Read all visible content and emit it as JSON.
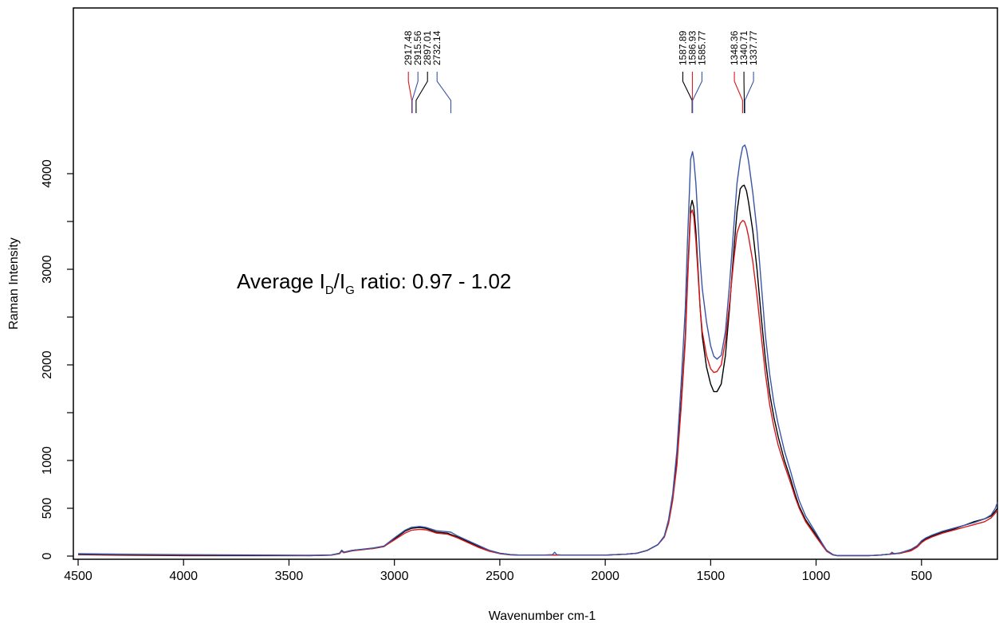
{
  "chart_data": {
    "type": "line",
    "title": "",
    "xlabel": "Wavenumber cm-1",
    "ylabel": "Raman Intensity",
    "xlim": [
      4500,
      140
    ],
    "ylim": [
      -50,
      5800
    ],
    "xticks": [
      4500,
      4000,
      3500,
      3000,
      2500,
      2000,
      1500,
      1000,
      500
    ],
    "xtick_labels": [
      "4500",
      "4000",
      "3500",
      "3000",
      "2500",
      "2000",
      "1500",
      "1000",
      "500"
    ],
    "yticks": [
      0,
      500,
      1000,
      2000,
      3000,
      4000
    ],
    "ytick_labels": [
      "0",
      "500",
      "1000",
      "2000",
      "3000",
      "4000"
    ],
    "y_minor_ticks": [
      1500,
      2500,
      3500
    ],
    "grid": false,
    "legend": "none",
    "annotation": {
      "prefix": "Average I",
      "sub1": "D",
      "mid": "/I",
      "sub2": "G",
      "suffix": " ratio: 0.97 - 1.02"
    },
    "series": [
      {
        "color": "#000000",
        "x": [
          4500,
          4300,
          4000,
          3700,
          3400,
          3300,
          3260,
          3250,
          3240,
          3200,
          3100,
          3050,
          3000,
          2950,
          2920,
          2880,
          2850,
          2800,
          2750,
          2700,
          2650,
          2600,
          2550,
          2500,
          2450,
          2400,
          2300,
          2200,
          2100,
          2000,
          1900,
          1850,
          1800,
          1750,
          1720,
          1700,
          1680,
          1660,
          1640,
          1620,
          1610,
          1600,
          1595,
          1588,
          1580,
          1570,
          1560,
          1550,
          1540,
          1520,
          1500,
          1485,
          1470,
          1450,
          1430,
          1410,
          1390,
          1375,
          1360,
          1350,
          1341,
          1330,
          1320,
          1300,
          1280,
          1260,
          1240,
          1220,
          1200,
          1180,
          1150,
          1120,
          1100,
          1080,
          1050,
          1000,
          970,
          950,
          920,
          900,
          880,
          860,
          840,
          800,
          750,
          700,
          650,
          600,
          550,
          520,
          500,
          480,
          450,
          400,
          350,
          300,
          250,
          200,
          170,
          150,
          140
        ],
        "y": [
          15,
          10,
          5,
          5,
          5,
          10,
          30,
          60,
          40,
          60,
          80,
          100,
          180,
          260,
          290,
          300,
          290,
          250,
          240,
          200,
          150,
          100,
          60,
          30,
          15,
          10,
          10,
          10,
          10,
          10,
          20,
          30,
          60,
          120,
          200,
          350,
          600,
          1000,
          1600,
          2300,
          2900,
          3400,
          3650,
          3720,
          3650,
          3400,
          3000,
          2600,
          2300,
          1980,
          1800,
          1720,
          1720,
          1800,
          2100,
          2600,
          3200,
          3600,
          3840,
          3870,
          3880,
          3820,
          3700,
          3400,
          3000,
          2500,
          2050,
          1700,
          1450,
          1250,
          1000,
          800,
          650,
          520,
          380,
          220,
          120,
          60,
          15,
          5,
          5,
          5,
          5,
          5,
          5,
          10,
          20,
          30,
          60,
          100,
          150,
          180,
          210,
          250,
          280,
          320,
          360,
          390,
          420,
          470,
          500
        ]
      },
      {
        "color": "#d7191c",
        "x": [
          4500,
          4300,
          4000,
          3700,
          3400,
          3300,
          3260,
          3250,
          3240,
          3200,
          3100,
          3050,
          3000,
          2950,
          2920,
          2880,
          2850,
          2800,
          2750,
          2700,
          2650,
          2600,
          2550,
          2500,
          2450,
          2400,
          2300,
          2200,
          2100,
          2000,
          1900,
          1850,
          1800,
          1750,
          1720,
          1700,
          1680,
          1660,
          1640,
          1620,
          1610,
          1600,
          1595,
          1587,
          1580,
          1570,
          1560,
          1550,
          1540,
          1520,
          1500,
          1485,
          1470,
          1450,
          1430,
          1410,
          1390,
          1375,
          1360,
          1348,
          1340,
          1330,
          1320,
          1300,
          1280,
          1260,
          1240,
          1220,
          1200,
          1180,
          1150,
          1120,
          1100,
          1080,
          1050,
          1000,
          970,
          950,
          920,
          900,
          880,
          860,
          840,
          800,
          750,
          700,
          650,
          600,
          550,
          520,
          500,
          480,
          450,
          400,
          350,
          300,
          250,
          200,
          170,
          150,
          140
        ],
        "y": [
          20,
          15,
          10,
          10,
          5,
          10,
          25,
          50,
          35,
          55,
          80,
          100,
          170,
          240,
          270,
          280,
          275,
          240,
          230,
          190,
          140,
          90,
          50,
          25,
          12,
          10,
          10,
          10,
          10,
          10,
          20,
          30,
          60,
          120,
          200,
          340,
          580,
          950,
          1550,
          2250,
          2850,
          3350,
          3580,
          3620,
          3550,
          3300,
          2950,
          2600,
          2350,
          2100,
          1960,
          1920,
          1930,
          2000,
          2250,
          2650,
          3100,
          3380,
          3480,
          3510,
          3500,
          3440,
          3340,
          3080,
          2720,
          2300,
          1900,
          1580,
          1350,
          1160,
          950,
          760,
          620,
          500,
          360,
          200,
          110,
          50,
          12,
          5,
          5,
          5,
          5,
          5,
          5,
          10,
          20,
          30,
          55,
          95,
          140,
          170,
          200,
          240,
          270,
          300,
          330,
          360,
          400,
          450,
          480
        ]
      },
      {
        "color": "#3a55a4",
        "x": [
          4500,
          4300,
          4000,
          3700,
          3400,
          3300,
          3260,
          3250,
          3240,
          3200,
          3100,
          3050,
          3000,
          2950,
          2920,
          2880,
          2850,
          2800,
          2750,
          2732,
          2700,
          2650,
          2600,
          2550,
          2500,
          2450,
          2400,
          2300,
          2250,
          2240,
          2230,
          2200,
          2100,
          2000,
          1900,
          1850,
          1800,
          1750,
          1720,
          1700,
          1680,
          1660,
          1640,
          1620,
          1610,
          1600,
          1595,
          1586,
          1580,
          1570,
          1560,
          1550,
          1540,
          1520,
          1500,
          1485,
          1470,
          1450,
          1430,
          1410,
          1390,
          1375,
          1360,
          1348,
          1338,
          1330,
          1320,
          1300,
          1280,
          1260,
          1240,
          1220,
          1200,
          1180,
          1150,
          1120,
          1100,
          1080,
          1050,
          1000,
          970,
          950,
          920,
          900,
          880,
          860,
          840,
          800,
          750,
          700,
          650,
          640,
          630,
          600,
          550,
          520,
          500,
          480,
          450,
          400,
          350,
          300,
          250,
          200,
          170,
          150,
          140
        ],
        "y": [
          25,
          20,
          15,
          12,
          8,
          12,
          30,
          55,
          40,
          60,
          85,
          105,
          190,
          270,
          300,
          310,
          300,
          265,
          255,
          250,
          210,
          160,
          110,
          60,
          30,
          15,
          10,
          10,
          15,
          40,
          15,
          10,
          10,
          10,
          20,
          30,
          60,
          120,
          210,
          380,
          650,
          1100,
          1800,
          2600,
          3300,
          3850,
          4150,
          4230,
          4150,
          3900,
          3500,
          3100,
          2800,
          2450,
          2200,
          2090,
          2060,
          2100,
          2350,
          2850,
          3450,
          3900,
          4150,
          4280,
          4300,
          4250,
          4130,
          3800,
          3400,
          2850,
          2300,
          1900,
          1600,
          1380,
          1100,
          880,
          720,
          580,
          420,
          240,
          130,
          60,
          15,
          5,
          5,
          5,
          5,
          5,
          5,
          10,
          20,
          40,
          25,
          35,
          70,
          110,
          160,
          190,
          220,
          260,
          290,
          320,
          350,
          390,
          430,
          500,
          560
        ]
      }
    ],
    "peak_labels": [
      {
        "wavenumber": 2917.48,
        "label": "2917.48",
        "color": "#d7191c"
      },
      {
        "wavenumber": 2915.56,
        "label": "2915.56",
        "color": "#3a55a4"
      },
      {
        "wavenumber": 2897.01,
        "label": "2897.01",
        "color": "#000000"
      },
      {
        "wavenumber": 2732.14,
        "label": "2732.14",
        "color": "#3a55a4"
      },
      {
        "wavenumber": 1587.89,
        "label": "1587.89",
        "color": "#000000"
      },
      {
        "wavenumber": 1586.93,
        "label": "1586.93",
        "color": "#d7191c"
      },
      {
        "wavenumber": 1585.77,
        "label": "1585.77",
        "color": "#3a55a4"
      },
      {
        "wavenumber": 1348.36,
        "label": "1348.36",
        "color": "#d7191c"
      },
      {
        "wavenumber": 1340.71,
        "label": "1340.71",
        "color": "#000000"
      },
      {
        "wavenumber": 1337.77,
        "label": "1337.77",
        "color": "#3a55a4"
      }
    ]
  }
}
